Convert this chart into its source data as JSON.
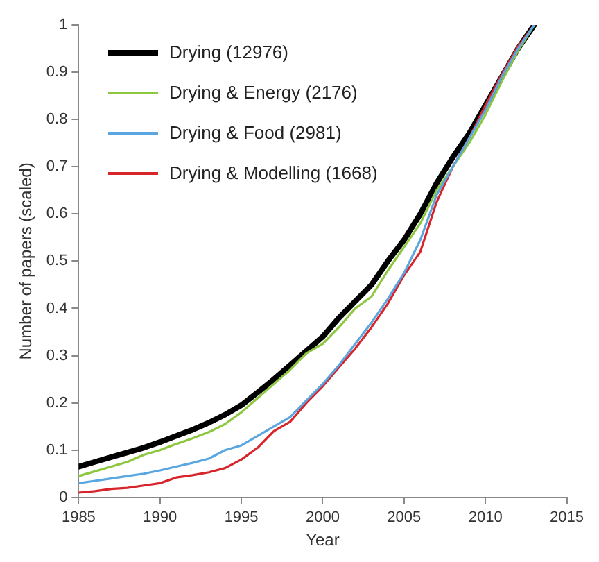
{
  "chart_data": {
    "type": "line",
    "xlabel": "Year",
    "ylabel": "Number of papers (scaled)",
    "x": [
      1985,
      1986,
      1987,
      1988,
      1989,
      1990,
      1991,
      1992,
      1993,
      1994,
      1995,
      1996,
      1997,
      1998,
      1999,
      2000,
      2001,
      2002,
      2003,
      2004,
      2005,
      2006,
      2007,
      2008,
      2009,
      2010,
      2011,
      2012,
      2013
    ],
    "series": [
      {
        "name": "Drying (12976)",
        "color": "#000000",
        "values": [
          0.065,
          0.075,
          0.085,
          0.095,
          0.105,
          0.117,
          0.13,
          0.143,
          0.158,
          0.175,
          0.195,
          0.222,
          0.25,
          0.28,
          0.31,
          0.34,
          0.38,
          0.415,
          0.45,
          0.5,
          0.545,
          0.6,
          0.665,
          0.72,
          0.77,
          0.83,
          0.89,
          0.95,
          1.0
        ]
      },
      {
        "name": "Drying & Energy (2176)",
        "color": "#8dc63f",
        "values": [
          0.045,
          0.055,
          0.065,
          0.075,
          0.09,
          0.1,
          0.113,
          0.125,
          0.138,
          0.155,
          0.18,
          0.21,
          0.24,
          0.27,
          0.305,
          0.325,
          0.36,
          0.4,
          0.425,
          0.48,
          0.53,
          0.58,
          0.65,
          0.7,
          0.75,
          0.81,
          0.88,
          0.945,
          1.0
        ]
      },
      {
        "name": "Drying & Food (2981)",
        "color": "#5aa6e0",
        "values": [
          0.03,
          0.035,
          0.04,
          0.045,
          0.05,
          0.057,
          0.065,
          0.073,
          0.082,
          0.1,
          0.11,
          0.13,
          0.15,
          0.17,
          0.205,
          0.24,
          0.28,
          0.325,
          0.37,
          0.42,
          0.475,
          0.545,
          0.64,
          0.7,
          0.76,
          0.82,
          0.89,
          0.95,
          1.0
        ]
      },
      {
        "name": "Drying & Modelling (1668)",
        "color": "#d7262b",
        "values": [
          0.01,
          0.013,
          0.018,
          0.02,
          0.025,
          0.03,
          0.042,
          0.047,
          0.053,
          0.062,
          0.08,
          0.105,
          0.14,
          0.16,
          0.2,
          0.235,
          0.275,
          0.315,
          0.36,
          0.41,
          0.47,
          0.52,
          0.625,
          0.7,
          0.76,
          0.83,
          0.895,
          0.955,
          1.0
        ]
      }
    ],
    "xlim": [
      1985,
      2015
    ],
    "xticks": [
      1985,
      1990,
      1995,
      2000,
      2005,
      2010,
      2015
    ],
    "ylim": [
      0,
      1
    ],
    "yticks": [
      0,
      0.1,
      0.2,
      0.3,
      0.4,
      0.5,
      0.6,
      0.7,
      0.8,
      0.9,
      1
    ],
    "grid": false,
    "legend": "top left",
    "marker": "none",
    "line_style": "solid"
  }
}
